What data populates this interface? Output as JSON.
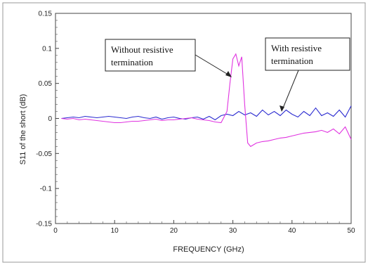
{
  "chart_data": {
    "type": "line",
    "xlabel": "FREQUENCY (GHz)",
    "ylabel": "S11 of the short (dB)",
    "xlim": [
      0,
      50
    ],
    "ylim": [
      -0.15,
      0.15
    ],
    "x_ticks": [
      0,
      10,
      20,
      30,
      40,
      50
    ],
    "x_tick_labels": [
      "0",
      "10",
      "20",
      "30",
      "40",
      "50"
    ],
    "y_ticks": [
      0.15,
      0.1,
      0.05,
      0,
      -0.05,
      -0.1,
      -0.15
    ],
    "y_tick_labels": [
      "0.15",
      "0.1",
      "0.05",
      "0",
      "-0.05",
      "-0.1",
      "-0.15"
    ],
    "grid": false,
    "series": [
      {
        "color": "#2b2bd0",
        "x": [
          1,
          2,
          3,
          4,
          5,
          6,
          7,
          8,
          9,
          10,
          11,
          12,
          13,
          14,
          15,
          16,
          17,
          18,
          19,
          20,
          21,
          22,
          23,
          24,
          25,
          26,
          27,
          28,
          29,
          30,
          31,
          32,
          33,
          34,
          35,
          36,
          37,
          38,
          39,
          40,
          41,
          42,
          43,
          44,
          45,
          46,
          47,
          48,
          49,
          50
        ],
        "values": [
          0.0,
          0.001,
          0.002,
          0.001,
          0.003,
          0.002,
          0.001,
          0.002,
          0.003,
          0.002,
          0.001,
          0.0,
          0.002,
          0.003,
          0.001,
          0.0,
          0.002,
          -0.001,
          0.001,
          0.002,
          0.0,
          -0.001,
          0.001,
          0.002,
          -0.001,
          0.003,
          -0.002,
          0.004,
          0.006,
          0.004,
          0.01,
          0.005,
          0.008,
          0.003,
          0.012,
          0.005,
          0.01,
          0.004,
          0.012,
          0.006,
          0.002,
          0.01,
          0.004,
          0.015,
          0.004,
          0.008,
          0.003,
          0.012,
          0.002,
          0.018
        ]
      },
      {
        "color": "#e033e0",
        "x": [
          1,
          2,
          3,
          4,
          5,
          6,
          7,
          8,
          9,
          10,
          11,
          12,
          13,
          14,
          15,
          16,
          17,
          18,
          19,
          20,
          21,
          22,
          23,
          24,
          25,
          26,
          27,
          28,
          29,
          29.5,
          30,
          30.5,
          31,
          31.5,
          32,
          32.5,
          33,
          34,
          35,
          36,
          37,
          38,
          39,
          40,
          41,
          42,
          43,
          44,
          45,
          46,
          47,
          48,
          49,
          50
        ],
        "values": [
          0.0,
          -0.001,
          0.0,
          -0.002,
          -0.001,
          -0.002,
          -0.003,
          -0.004,
          -0.005,
          -0.006,
          -0.006,
          -0.005,
          -0.004,
          -0.004,
          -0.003,
          -0.002,
          -0.001,
          -0.003,
          -0.002,
          -0.002,
          -0.001,
          0.0,
          0.001,
          -0.001,
          -0.002,
          -0.003,
          -0.005,
          -0.006,
          0.01,
          0.05,
          0.085,
          0.092,
          0.075,
          0.088,
          0.02,
          -0.035,
          -0.04,
          -0.035,
          -0.033,
          -0.032,
          -0.03,
          -0.028,
          -0.027,
          -0.025,
          -0.023,
          -0.021,
          -0.02,
          -0.019,
          -0.017,
          -0.02,
          -0.015,
          -0.022,
          -0.012,
          -0.03
        ]
      }
    ],
    "annotations": [
      {
        "text": [
          "Without resistive",
          "termination"
        ]
      },
      {
        "text": [
          "With resistive",
          "termination"
        ]
      }
    ]
  }
}
